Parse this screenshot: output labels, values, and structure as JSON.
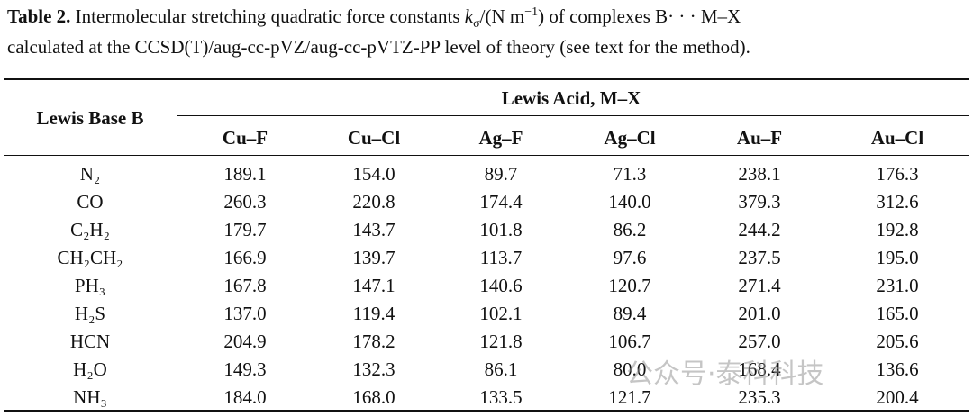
{
  "caption": {
    "label": "Table 2.",
    "parts": [
      "Intermolecular stretching quadratic force constants ",
      "k",
      "σ",
      "/(N m",
      "−1",
      ") of complexes B· · · M–X",
      "calculated at the CCSD(T)/aug-cc-pVZ/aug-cc-pVTZ-PP level of theory (see text for the method)."
    ]
  },
  "table": {
    "row_header": "Lewis Base B",
    "group_header": "Lewis Acid, M–X",
    "columns": [
      "Cu–F",
      "Cu–Cl",
      "Ag–F",
      "Ag–Cl",
      "Au–F",
      "Au–Cl"
    ],
    "rows": [
      [
        "N₂",
        "189.1",
        "154.0",
        "89.7",
        "71.3",
        "238.1",
        "176.3"
      ],
      [
        "CO",
        "260.3",
        "220.8",
        "174.4",
        "140.0",
        "379.3",
        "312.6"
      ],
      [
        "C₂H₂",
        "179.7",
        "143.7",
        "101.8",
        "86.2",
        "244.2",
        "192.8"
      ],
      [
        "CH₂CH₂",
        "166.9",
        "139.7",
        "113.7",
        "97.6",
        "237.5",
        "195.0"
      ],
      [
        "PH₃",
        "167.8",
        "147.1",
        "140.6",
        "120.7",
        "271.4",
        "231.0"
      ],
      [
        "H₂S",
        "137.0",
        "119.4",
        "102.1",
        "89.4",
        "201.0",
        "165.0"
      ],
      [
        "HCN",
        "204.9",
        "178.2",
        "121.8",
        "106.7",
        "257.0",
        "205.6"
      ],
      [
        "H₂O",
        "149.3",
        "132.3",
        "86.1",
        "80.0",
        "168.4",
        "136.6"
      ],
      [
        "NH₃",
        "184.0",
        "168.0",
        "133.5",
        "121.7",
        "235.3",
        "200.4"
      ]
    ]
  },
  "watermark": {
    "text": "公众号·泰科科技"
  }
}
